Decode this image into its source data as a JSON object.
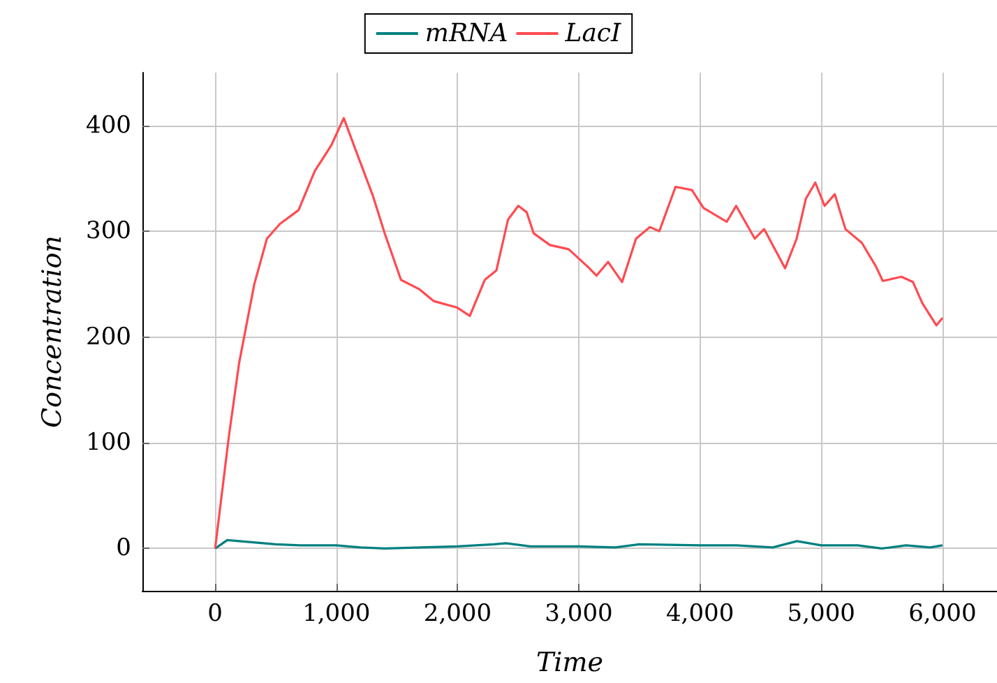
{
  "chart_data": {
    "type": "line",
    "xlabel": "Time",
    "ylabel": "Concentration",
    "xlim": [
      -600,
      6450
    ],
    "xticks": [
      {
        "value": 0,
        "label": "0"
      },
      {
        "value": 1000,
        "label": "1,000"
      },
      {
        "value": 2000,
        "label": "2,000"
      },
      {
        "value": 3000,
        "label": "3,000"
      },
      {
        "value": 4000,
        "label": "4,000"
      },
      {
        "value": 5000,
        "label": "5,000"
      },
      {
        "value": 6000,
        "label": "6,000"
      }
    ],
    "ylim": [
      -40,
      450
    ],
    "yticks": [
      0,
      100,
      200,
      300,
      400
    ],
    "grid": true,
    "legend": "top",
    "marker": "none",
    "line_style": "solid",
    "series": [
      {
        "name": "mRNA",
        "color": "#008080",
        "x": [
          0,
          100,
          300,
          500,
          700,
          1000,
          1200,
          1400,
          1700,
          2000,
          2300,
          2400,
          2600,
          3000,
          3300,
          3500,
          4000,
          4300,
          4600,
          4800,
          5000,
          5300,
          5500,
          5700,
          5900,
          6000
        ],
        "values": [
          0,
          8,
          6,
          4,
          3,
          3,
          1,
          0,
          1,
          2,
          4,
          5,
          2,
          2,
          1,
          4,
          3,
          3,
          1,
          7,
          3,
          3,
          0,
          3,
          1,
          3
        ]
      },
      {
        "name": "LacI",
        "color": "#ff4a50",
        "x": [
          0,
          112,
          197,
          323,
          427,
          535,
          688,
          822,
          957,
          1061,
          1188,
          1303,
          1399,
          1533,
          1687,
          1802,
          1994,
          2101,
          2224,
          2320,
          2416,
          2501,
          2570,
          2628,
          2762,
          2916,
          3069,
          3146,
          3242,
          3357,
          3472,
          3587,
          3664,
          3798,
          3933,
          4029,
          4221,
          4298,
          4452,
          4529,
          4702,
          4797,
          4874,
          4951,
          5028,
          5112,
          5200,
          5335,
          5450,
          5508,
          5661,
          5757,
          5834,
          5950,
          6000
        ],
        "values": [
          0,
          105,
          175,
          250,
          293,
          307,
          320,
          357,
          381,
          407,
          368,
          333,
          298,
          254,
          245,
          234,
          228,
          220,
          254,
          263,
          311,
          324,
          318,
          298,
          287,
          283,
          267,
          258,
          271,
          252,
          293,
          304,
          300,
          342,
          339,
          322,
          309,
          324,
          293,
          302,
          265,
          293,
          331,
          346,
          324,
          335,
          302,
          289,
          267,
          253,
          257,
          252,
          232,
          211,
          218
        ]
      }
    ]
  }
}
